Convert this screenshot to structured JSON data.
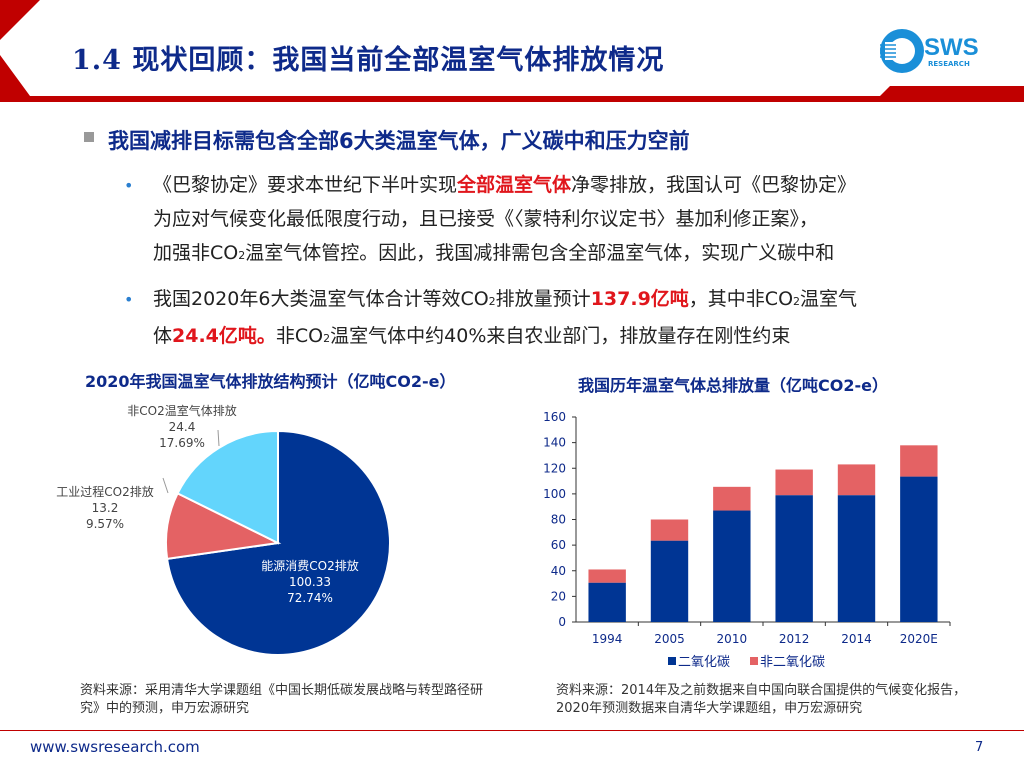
{
  "header": {
    "title": "1.4 现状回顾：我国当前全部温室气体排放情况",
    "logo": "SWS",
    "logo_sub": "RESEARCH"
  },
  "heading": "我国减排目标需包含全部6大类温室气体，广义碳中和压力空前",
  "bullets": [
    {
      "parts": [
        "《巴黎协定》要求本世纪下半叶实现",
        "全部温室气体",
        "净零排放，我国认可《巴黎协定》",
        "为应对气候变化最低限度行动，且已接受《〈蒙特利尔议定书〉基加利修正案》，",
        "加强非CO",
        "2",
        "温室气体管控。因此，我国减排需包含全部温室气体，实现广义碳中和"
      ]
    },
    {
      "parts": [
        "我国2020年6大类温室气体合计等效CO",
        "2",
        "排放量预计",
        "137.9亿吨",
        "，其中非CO",
        "2",
        "温室气",
        "体",
        "24.4亿吨。",
        "非CO",
        "2",
        "温室气体中约40%来自农业部门，排放量存在刚性约束"
      ]
    }
  ],
  "bullet_glyph": "•",
  "chart_data": [
    {
      "type": "pie",
      "title": "2020年我国温室气体排放结构预计（亿吨CO2-e）",
      "slices": [
        {
          "name": "能源消费CO2排放",
          "value": 100.33,
          "pct": "72.74%",
          "color": "#003594"
        },
        {
          "name": "工业过程CO2排放",
          "value": 13.2,
          "pct": "9.57%",
          "color": "#e46264"
        },
        {
          "name": "非CO2温室气体排放",
          "value": 24.4,
          "pct": "17.69%",
          "color": "#63d5fc"
        }
      ]
    },
    {
      "type": "bar",
      "stacked": true,
      "title": "我国历年温室气体总排放量（亿吨CO2-e）",
      "categories": [
        "1994",
        "2005",
        "2010",
        "2012",
        "2014",
        "2020E"
      ],
      "series": [
        {
          "name": "二氧化碳",
          "values": [
            30.7,
            63.5,
            87,
            99,
            99,
            113.5
          ],
          "color": "#003594"
        },
        {
          "name": "非二氧化碳",
          "values": [
            10.3,
            16.5,
            18.5,
            20,
            24,
            24.4
          ],
          "color": "#e46264"
        }
      ],
      "ylim": [
        0,
        160
      ],
      "yticks": [
        "0",
        "20",
        "40",
        "60",
        "80",
        "100",
        "120",
        "140",
        "160"
      ],
      "legend": "bottom"
    }
  ],
  "sources": {
    "left": "资料来源：采用清华大学课题组《中国长期低碳发展战略与转型路径研究》中的预测，申万宏源研究",
    "right": "资料来源：2014年及之前数据来自中国向联合国提供的气候变化报告，2020年预测数据来自清华大学课题组，申万宏源研究"
  },
  "footer": {
    "url": "www.swsresearch.com",
    "page": "7"
  },
  "colors": {
    "brand_red": "#c00000",
    "navy": "#0e2a8a"
  }
}
